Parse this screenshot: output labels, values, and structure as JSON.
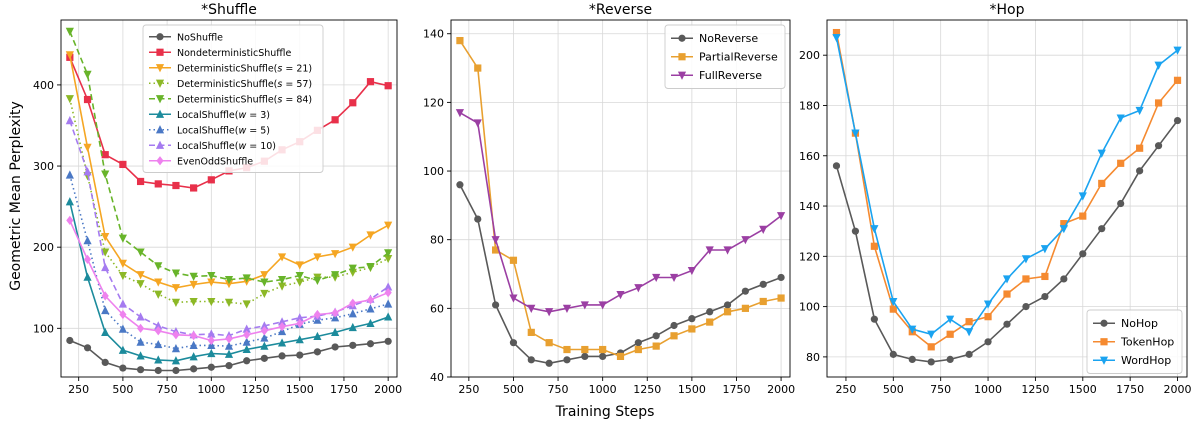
{
  "figure": {
    "ylabel": "Geometric Mean Perplexity",
    "xlabel": "Training Steps"
  },
  "chart_data": [
    {
      "type": "line",
      "title": "*Shuffle",
      "xlabel": "",
      "ylabel": "Geometric Mean Perplexity",
      "xlim": [
        150,
        2050
      ],
      "ylim": [
        40,
        480
      ],
      "xticks": [
        250,
        500,
        750,
        1000,
        1250,
        1500,
        1750,
        2000
      ],
      "yticks": [
        100,
        200,
        300,
        400
      ],
      "grid": true,
      "legend_position": "upper-center",
      "x": [
        200,
        300,
        400,
        500,
        600,
        700,
        800,
        900,
        1000,
        1100,
        1200,
        1300,
        1400,
        1500,
        1600,
        1700,
        1800,
        1900,
        2000
      ],
      "series": [
        {
          "name": "NoShuffle",
          "color": "#595959",
          "marker": "circle",
          "dash": "solid",
          "values": [
            85,
            76,
            58,
            51,
            49,
            48,
            48,
            50,
            52,
            54,
            60,
            63,
            66,
            67,
            71,
            77,
            79,
            81,
            84
          ]
        },
        {
          "name": "NondeterministicShuffle",
          "color": "#e8304a",
          "marker": "square",
          "dash": "solid",
          "values": [
            434,
            382,
            314,
            302,
            281,
            278,
            276,
            273,
            283,
            294,
            298,
            306,
            320,
            330,
            344,
            357,
            378,
            404,
            399
          ]
        },
        {
          "name": "DeterministicShuffle(s = 21)",
          "color": "#f5a623",
          "marker": "triangle-down",
          "dash": "solid",
          "values": [
            437,
            323,
            213,
            180,
            166,
            157,
            150,
            154,
            157,
            155,
            158,
            166,
            188,
            178,
            188,
            192,
            200,
            215,
            227
          ]
        },
        {
          "name": "DeterministicShuffle(s = 57)",
          "color": "#8cb826",
          "marker": "triangle-down",
          "dash": "dotted",
          "values": [
            383,
            288,
            194,
            165,
            155,
            142,
            132,
            133,
            133,
            132,
            130,
            143,
            152,
            157,
            163,
            163,
            169,
            175,
            186
          ]
        },
        {
          "name": "DeterministicShuffle(s = 84)",
          "color": "#68b42a",
          "marker": "triangle-down",
          "dash": "dashed",
          "values": [
            466,
            413,
            290,
            211,
            194,
            177,
            168,
            164,
            165,
            160,
            162,
            157,
            160,
            165,
            159,
            166,
            174,
            176,
            193
          ]
        },
        {
          "name": "LocalShuffle(w = 3)",
          "color": "#1c8b9c",
          "marker": "triangle-up",
          "dash": "solid",
          "values": [
            256,
            163,
            95,
            73,
            66,
            61,
            60,
            65,
            69,
            68,
            74,
            78,
            82,
            86,
            90,
            95,
            101,
            106,
            114
          ]
        },
        {
          "name": "LocalShuffle(w = 5)",
          "color": "#4a78c5",
          "marker": "triangle-up",
          "dash": "dotted",
          "values": [
            289,
            208,
            122,
            99,
            83,
            80,
            75,
            79,
            79,
            78,
            83,
            88,
            96,
            105,
            110,
            113,
            118,
            124,
            130
          ]
        },
        {
          "name": "LocalShuffle(w = 10)",
          "color": "#a57bf0",
          "marker": "triangle-up",
          "dash": "dashed",
          "values": [
            356,
            293,
            175,
            130,
            114,
            103,
            96,
            92,
            93,
            91,
            99,
            103,
            108,
            113,
            115,
            120,
            128,
            136,
            151
          ]
        },
        {
          "name": "EvenOddShuffle",
          "color": "#ee82ee",
          "marker": "diamond",
          "dash": "solid",
          "values": [
            233,
            185,
            140,
            117,
            100,
            97,
            92,
            91,
            85,
            87,
            92,
            97,
            102,
            106,
            117,
            119,
            131,
            135,
            144
          ]
        }
      ]
    },
    {
      "type": "line",
      "title": "*Reverse",
      "xlabel": "",
      "ylabel": "",
      "xlim": [
        150,
        2050
      ],
      "ylim": [
        40,
        144
      ],
      "xticks": [
        250,
        500,
        750,
        1000,
        1250,
        1500,
        1750,
        2000
      ],
      "yticks": [
        40,
        60,
        80,
        100,
        120,
        140
      ],
      "grid": true,
      "legend_position": "upper-right",
      "x": [
        200,
        300,
        400,
        500,
        600,
        700,
        800,
        900,
        1000,
        1100,
        1200,
        1300,
        1400,
        1500,
        1600,
        1700,
        1800,
        1900,
        2000
      ],
      "series": [
        {
          "name": "NoReverse",
          "color": "#595959",
          "marker": "circle",
          "dash": "solid",
          "values": [
            96,
            86,
            61,
            50,
            45,
            44,
            45,
            46,
            46,
            47,
            50,
            52,
            55,
            57,
            59,
            61,
            65,
            67,
            69
          ]
        },
        {
          "name": "PartialReverse",
          "color": "#e8a030",
          "marker": "square",
          "dash": "solid",
          "values": [
            138,
            130,
            77,
            74,
            53,
            50,
            48,
            48,
            48,
            46,
            48,
            49,
            52,
            54,
            56,
            59,
            60,
            62,
            63
          ]
        },
        {
          "name": "FullReverse",
          "color": "#9b3fa3",
          "marker": "triangle-down",
          "dash": "solid",
          "values": [
            117,
            114,
            80,
            63,
            60,
            59,
            60,
            61,
            61,
            64,
            66,
            69,
            69,
            71,
            77,
            77,
            80,
            83,
            87
          ]
        }
      ]
    },
    {
      "type": "line",
      "title": "*Hop",
      "xlabel": "",
      "ylabel": "",
      "xlim": [
        150,
        2050
      ],
      "ylim": [
        72,
        214
      ],
      "xticks": [
        250,
        500,
        750,
        1000,
        1250,
        1500,
        1750,
        2000
      ],
      "yticks": [
        80,
        100,
        120,
        140,
        160,
        180,
        200
      ],
      "grid": true,
      "legend_position": "lower-right",
      "x": [
        200,
        300,
        400,
        500,
        600,
        700,
        800,
        900,
        1000,
        1100,
        1200,
        1300,
        1400,
        1500,
        1600,
        1700,
        1800,
        1900,
        2000
      ],
      "series": [
        {
          "name": "NoHop",
          "color": "#595959",
          "marker": "circle",
          "dash": "solid",
          "values": [
            156,
            130,
            95,
            81,
            79,
            78,
            79,
            81,
            86,
            93,
            100,
            104,
            111,
            121,
            131,
            141,
            154,
            164,
            174
          ]
        },
        {
          "name": "TokenHop",
          "color": "#f58a30",
          "marker": "square",
          "dash": "solid",
          "values": [
            209,
            169,
            124,
            99,
            90,
            84,
            89,
            94,
            96,
            105,
            111,
            112,
            133,
            136,
            149,
            157,
            163,
            181,
            190
          ]
        },
        {
          "name": "WordHop",
          "color": "#1aa3f0",
          "marker": "triangle-down",
          "dash": "solid",
          "values": [
            207,
            169,
            131,
            102,
            91,
            89,
            95,
            90,
            101,
            111,
            119,
            123,
            131,
            144,
            161,
            175,
            178,
            196,
            202
          ]
        }
      ]
    }
  ]
}
